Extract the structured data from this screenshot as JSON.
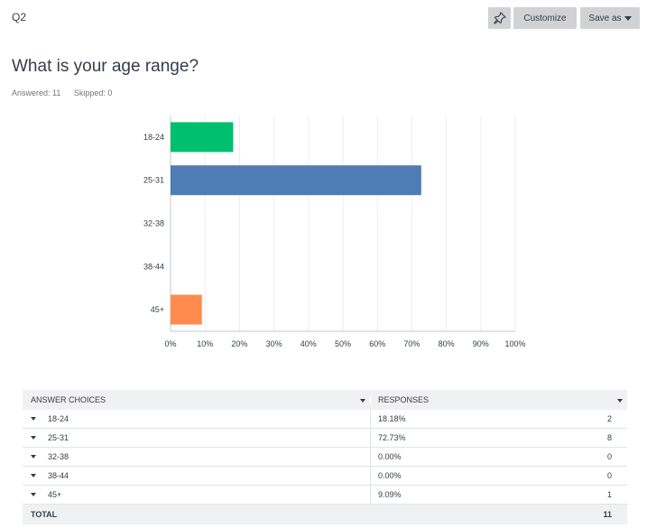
{
  "header": {
    "question_number": "Q2",
    "pin_icon": "pushpin-icon",
    "customize_label": "Customize",
    "save_as_label": "Save as"
  },
  "question": {
    "title": "What is your age range?",
    "answered": "Answered: 11",
    "skipped": "Skipped: 0"
  },
  "colors": {
    "bar_18_24": "#00bf6f",
    "bar_25_31": "#507cb6",
    "bar_45_plus": "#ff8b4f",
    "grid": "#edeeee",
    "axis": "#c5c8cb"
  },
  "chart_data": {
    "type": "bar",
    "orientation": "horizontal",
    "categories": [
      "18-24",
      "25-31",
      "32-38",
      "38-44",
      "45+"
    ],
    "values": [
      18.18,
      72.73,
      0,
      0,
      9.09
    ],
    "xlim": [
      0,
      100
    ],
    "xticks": [
      "0%",
      "10%",
      "20%",
      "30%",
      "40%",
      "50%",
      "60%",
      "70%",
      "80%",
      "90%",
      "100%"
    ],
    "grid": true
  },
  "table": {
    "headers": {
      "choices": "ANSWER CHOICES",
      "responses": "RESPONSES"
    },
    "rows": [
      {
        "choice": "18-24",
        "percent": "18.18%",
        "count": "2"
      },
      {
        "choice": "25-31",
        "percent": "72.73%",
        "count": "8"
      },
      {
        "choice": "32-38",
        "percent": "0.00%",
        "count": "0"
      },
      {
        "choice": "38-44",
        "percent": "0.00%",
        "count": "0"
      },
      {
        "choice": "45+",
        "percent": "9.09%",
        "count": "1"
      }
    ],
    "total_label": "TOTAL",
    "total_count": "11"
  }
}
